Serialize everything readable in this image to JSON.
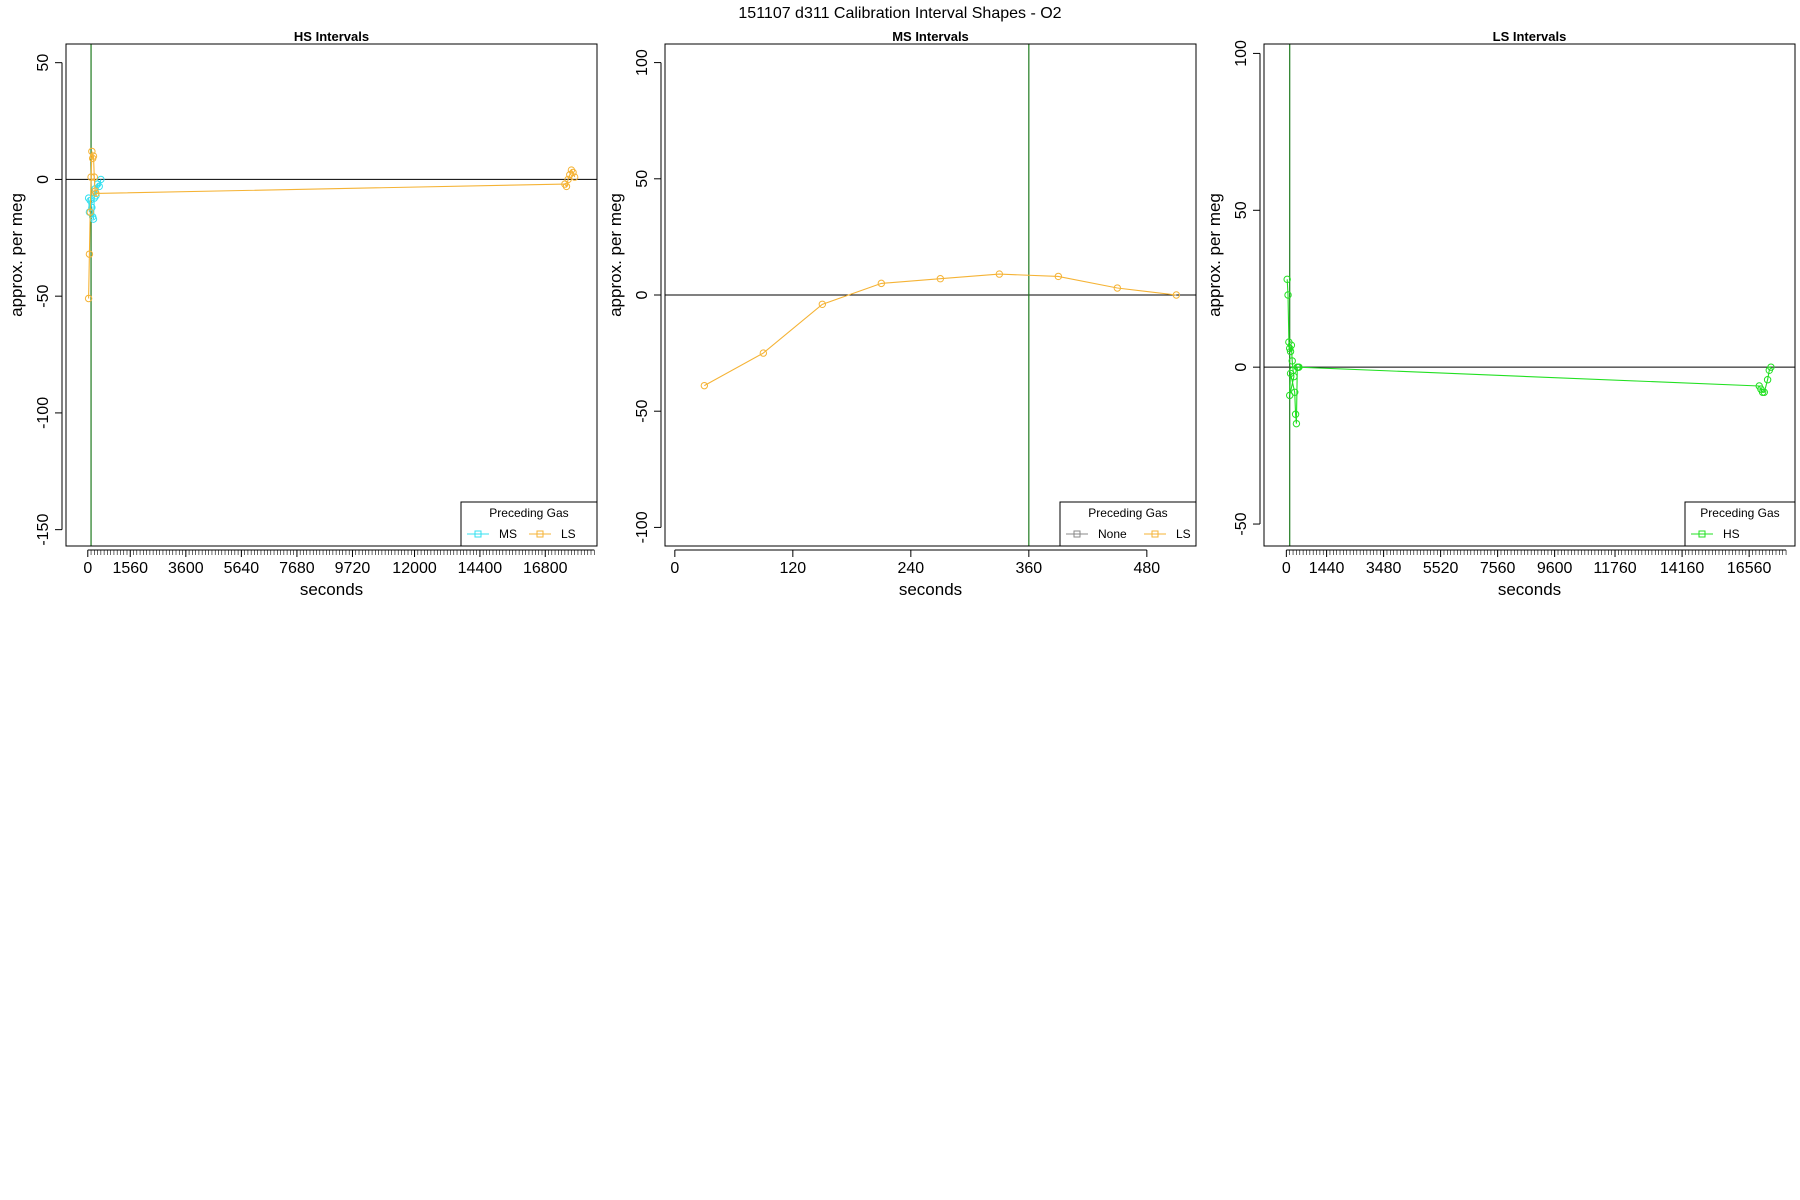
{
  "page_title": "151107   d311   Calibration Interval Shapes - O2",
  "chart_data": [
    {
      "type": "scatter",
      "title": "HS Intervals",
      "xlabel": "seconds",
      "ylabel": "approx. per meg",
      "xlim": [
        -800,
        18700
      ],
      "ylim": [
        -157,
        58
      ],
      "xticks": [
        0,
        1560,
        3600,
        5640,
        7680,
        9720,
        12000,
        14400,
        16800
      ],
      "yticks": [
        50,
        0,
        -50,
        -100,
        -150
      ],
      "minor_xtick_step": 120,
      "minor_xtick_range": [
        120,
        18600
      ],
      "hline": 0,
      "vline": 120,
      "legend": {
        "title": "Preceding Gas",
        "position": "bottom-right",
        "entries": [
          "MS",
          "LS"
        ]
      },
      "series": [
        {
          "name": "MS",
          "color": "#33e0f0",
          "points": [
            [
              30,
              -8
            ],
            [
              60,
              -14
            ],
            [
              90,
              -9
            ],
            [
              150,
              -12
            ],
            [
              180,
              -16
            ],
            [
              210,
              -17
            ],
            [
              240,
              -8
            ],
            [
              270,
              -4
            ],
            [
              300,
              -7
            ],
            [
              360,
              -2
            ],
            [
              420,
              -3
            ],
            [
              480,
              0
            ]
          ]
        },
        {
          "name": "LS",
          "color": "#f5b335",
          "points": [
            [
              30,
              -51
            ],
            [
              60,
              -32
            ],
            [
              90,
              -14
            ],
            [
              120,
              1
            ],
            [
              150,
              12
            ],
            [
              180,
              9
            ],
            [
              210,
              10
            ],
            [
              240,
              1
            ],
            [
              270,
              -5
            ],
            [
              300,
              -6
            ],
            [
              17520,
              -2
            ],
            [
              17580,
              -3
            ],
            [
              17640,
              0
            ],
            [
              17700,
              2
            ],
            [
              17760,
              4
            ],
            [
              17820,
              3
            ],
            [
              17880,
              1
            ]
          ]
        }
      ]
    },
    {
      "type": "line",
      "title": "MS Intervals",
      "xlabel": "seconds",
      "ylabel": "approx. per meg",
      "xlim": [
        -10,
        530
      ],
      "ylim": [
        -108,
        108
      ],
      "xticks": [
        0,
        120,
        240,
        360,
        480
      ],
      "yticks": [
        100,
        50,
        0,
        -50,
        -100
      ],
      "hline": 0,
      "vline": 360,
      "legend": {
        "title": "Preceding Gas",
        "position": "bottom-right",
        "entries": [
          "None",
          "LS"
        ]
      },
      "series": [
        {
          "name": "None",
          "color": "#888888",
          "points": []
        },
        {
          "name": "LS",
          "color": "#f5b335",
          "points": [
            [
              30,
              -39
            ],
            [
              90,
              -25
            ],
            [
              150,
              -4
            ],
            [
              210,
              5
            ],
            [
              270,
              7
            ],
            [
              330,
              9
            ],
            [
              390,
              8
            ],
            [
              450,
              3
            ],
            [
              510,
              0
            ]
          ]
        }
      ]
    },
    {
      "type": "scatter",
      "title": "LS Intervals",
      "xlabel": "seconds",
      "ylabel": "approx. per meg",
      "xlim": [
        -800,
        18200
      ],
      "ylim": [
        -57,
        103
      ],
      "xticks": [
        0,
        1440,
        3480,
        5520,
        7560,
        9600,
        11760,
        14160,
        16560
      ],
      "yticks": [
        100,
        50,
        0,
        -50
      ],
      "minor_xtick_step": 120,
      "minor_xtick_range": [
        120,
        17880
      ],
      "hline": 0,
      "vline": 120,
      "legend": {
        "title": "Preceding Gas",
        "position": "bottom-right",
        "entries": [
          "HS"
        ]
      },
      "series": [
        {
          "name": "HS",
          "color": "#22e022",
          "points": [
            [
              30,
              28
            ],
            [
              60,
              23
            ],
            [
              90,
              8
            ],
            [
              120,
              6
            ],
            [
              150,
              5
            ],
            [
              180,
              7
            ],
            [
              210,
              2
            ],
            [
              240,
              -1
            ],
            [
              270,
              -3
            ],
            [
              120,
              -9
            ],
            [
              150,
              -2
            ],
            [
              300,
              -8
            ],
            [
              330,
              -15
            ],
            [
              360,
              -18
            ],
            [
              390,
              0
            ],
            [
              420,
              0
            ],
            [
              450,
              0
            ],
            [
              16920,
              -6
            ],
            [
              16980,
              -7
            ],
            [
              17040,
              -8
            ],
            [
              17100,
              -8
            ],
            [
              17220,
              -4
            ],
            [
              17280,
              -1
            ],
            [
              17340,
              0
            ]
          ]
        }
      ]
    }
  ]
}
